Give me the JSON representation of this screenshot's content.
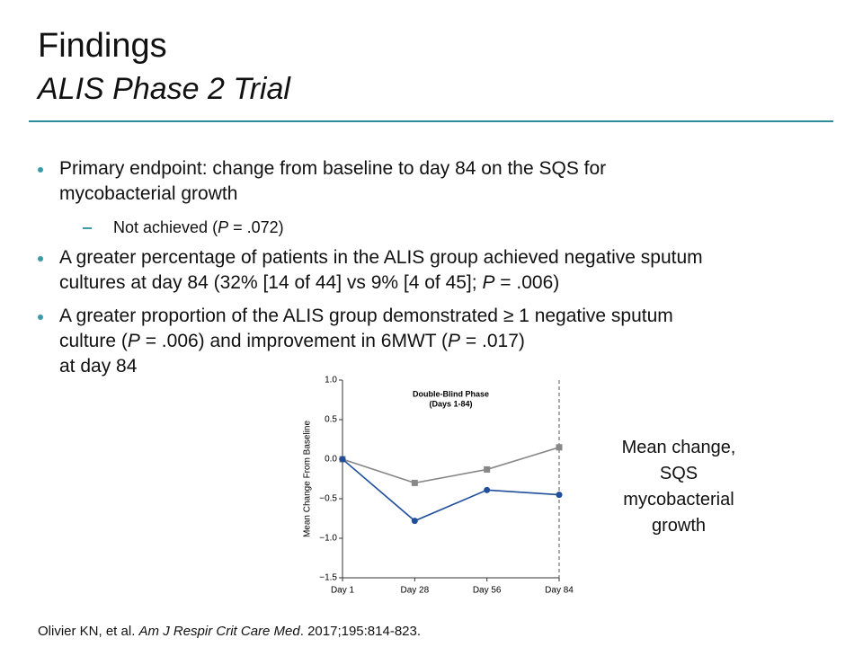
{
  "title": "Findings",
  "subtitle": "ALIS Phase 2 Trial",
  "bullets": [
    {
      "level": 1,
      "lines": [
        [
          "Primary endpoint: change from baseline to day 84 on the SQS for"
        ],
        [
          "mycobacterial growth"
        ]
      ]
    },
    {
      "level": 2,
      "lines": [
        [
          "Not achieved (",
          {
            "text": "P",
            "italic": true
          },
          " = .072)"
        ]
      ]
    },
    {
      "level": 1,
      "lines": [
        [
          "A greater percentage of patients in the ALIS group achieved negative sputum"
        ],
        [
          "cultures at day 84 (32% [14 of 44] vs 9% [4 of 45]; ",
          {
            "text": "P",
            "italic": true
          },
          " = .006)"
        ]
      ]
    },
    {
      "level": 1,
      "lines": [
        [
          "A greater proportion of the ALIS group demonstrated ≥ 1 negative sputum"
        ],
        [
          "culture (",
          {
            "text": "P",
            "italic": true
          },
          " = .006) and improvement in 6MWT (",
          {
            "text": "P",
            "italic": true
          },
          " = .017)"
        ],
        [
          "at day 84"
        ]
      ]
    }
  ],
  "chart_data": {
    "type": "line",
    "annotation": [
      "Double-Blind Phase",
      "(Days 1-84)"
    ],
    "y_label": "Mean Change From Baseline",
    "categories": [
      "Day 1",
      "Day 28",
      "Day 56",
      "Day 84"
    ],
    "series": [
      {
        "color": "#888888",
        "marker": "square",
        "values": [
          0,
          -0.3,
          -0.13,
          0.15
        ]
      },
      {
        "color": "#1f4e9c",
        "marker": "circle",
        "values": [
          0,
          -0.78,
          -0.39,
          -0.45
        ]
      }
    ],
    "ylim": [
      -1.5,
      1
    ],
    "yticks": [
      {
        "value": -1.5,
        "label": "−1.5"
      },
      {
        "value": -1,
        "label": "−1.0"
      },
      {
        "value": -0.5,
        "label": "−0.5"
      },
      {
        "value": 0,
        "label": "0.0"
      },
      {
        "value": 0.5,
        "label": "0.5"
      },
      {
        "value": 1,
        "label": "1.0"
      }
    ]
  },
  "side_caption": [
    "Mean change,",
    "SQS",
    "mycobacterial",
    "growth"
  ],
  "citation": [
    "Olivier KN, et al. ",
    {
      "text": "Am J Respir Crit Care Med",
      "italic": true
    },
    ". 2017;195:814-823."
  ]
}
